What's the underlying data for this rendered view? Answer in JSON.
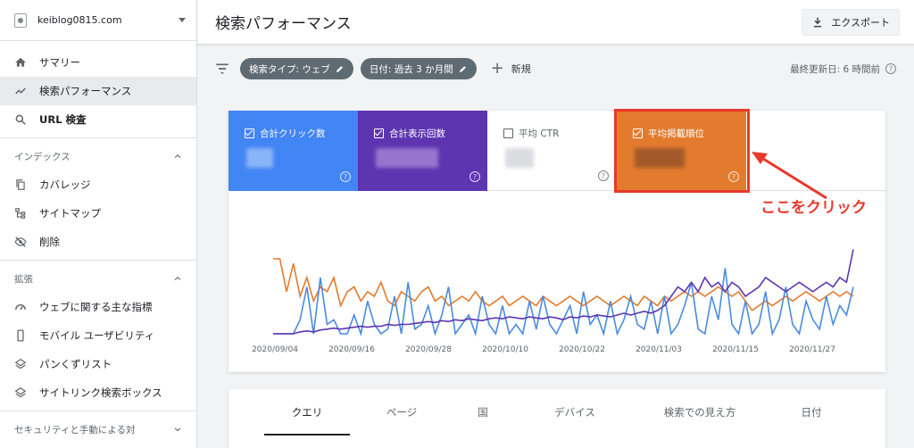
{
  "property": {
    "name": "keiblog0815.com"
  },
  "sidebar": {
    "items": [
      {
        "label": "サマリー",
        "icon": "home-icon"
      },
      {
        "label": "検索パフォーマンス",
        "icon": "trending-icon"
      },
      {
        "label": "URL 検査",
        "icon": "search-icon"
      }
    ],
    "index_section": {
      "title": "インデックス",
      "items": [
        {
          "label": "カバレッジ",
          "icon": "copy-icon"
        },
        {
          "label": "サイトマップ",
          "icon": "sitemap-icon"
        },
        {
          "label": "削除",
          "icon": "visibility-off-icon"
        }
      ]
    },
    "enhance_section": {
      "title": "拡張",
      "items": [
        {
          "label": "ウェブに関する主な指標",
          "icon": "gauge-icon"
        },
        {
          "label": "モバイル ユーザビリティ",
          "icon": "phone-icon"
        },
        {
          "label": "パンくずリスト",
          "icon": "layers-icon"
        },
        {
          "label": "サイトリンク検索ボックス",
          "icon": "layers-icon"
        }
      ]
    },
    "security_section": {
      "title": "セキュリティと手動による対"
    }
  },
  "header": {
    "title": "検索パフォーマンス",
    "export_label": "エクスポート"
  },
  "filters": {
    "chips": [
      "検索タイプ: ウェブ",
      "日付: 過去 3 か月間"
    ],
    "new_label": "新規",
    "updated": "最終更新日: 6 時間前"
  },
  "metrics": [
    {
      "label": "合計クリック数",
      "checked": true,
      "color": "#4285f4"
    },
    {
      "label": "合計表示回数",
      "checked": true,
      "color": "#5e35b1"
    },
    {
      "label": "平均 CTR",
      "checked": false,
      "color": "#ffffff"
    },
    {
      "label": "平均掲載順位",
      "checked": true,
      "color": "#e37b2e"
    }
  ],
  "annotation": {
    "text": "ここをクリック",
    "color": "#e8382b"
  },
  "chart_data": {
    "type": "line",
    "x_ticks": [
      "2020/09/04",
      "2020/09/16",
      "2020/09/28",
      "2020/10/10",
      "2020/10/22",
      "2020/11/03",
      "2020/11/15",
      "2020/11/27"
    ],
    "series": [
      {
        "color": "#e37b2e",
        "values": [
          0.8,
          0.8,
          0.45,
          0.75,
          0.4,
          0.6,
          0.35,
          0.5,
          0.45,
          0.6,
          0.3,
          0.45,
          0.5,
          0.35,
          0.45,
          0.4,
          0.55,
          0.35,
          0.3,
          0.45,
          0.4,
          0.35,
          0.45,
          0.5,
          0.35,
          0.4,
          0.3,
          0.35,
          0.4,
          0.35,
          0.45,
          0.35,
          0.3,
          0.35,
          0.4,
          0.3,
          0.35,
          0.4,
          0.35,
          0.3,
          0.4,
          0.35,
          0.3,
          0.35,
          0.4,
          0.35,
          0.3,
          0.35,
          0.4,
          0.35,
          0.3,
          0.35,
          0.4,
          0.35,
          0.3,
          0.4,
          0.35,
          0.3,
          0.4,
          0.35,
          0.4,
          0.45,
          0.4,
          0.45,
          0.4,
          0.45,
          0.5,
          0.45,
          0.4,
          0.45,
          0.35,
          0.25,
          0.3,
          0.35,
          0.3,
          0.35,
          0.4,
          0.35,
          0.4,
          0.45,
          0.4,
          0.35,
          0.4,
          0.45,
          0.4,
          0.45,
          0.4
        ]
      },
      {
        "color": "#4a8be0",
        "values": [
          0,
          0,
          0,
          0,
          0.15,
          0.5,
          0,
          0.6,
          0.1,
          0.15,
          0,
          0,
          0.2,
          0,
          0.35,
          0.1,
          0,
          0.05,
          0.4,
          0,
          0.55,
          0.05,
          0.1,
          0.3,
          0,
          0.2,
          0.5,
          0,
          0.1,
          0.2,
          0,
          0.4,
          0.1,
          0,
          0.3,
          0,
          0.1,
          0,
          0.35,
          0.05,
          0.4,
          0.1,
          0,
          0.15,
          0.3,
          0,
          0.45,
          0.1,
          0.2,
          0,
          0.35,
          0,
          0.15,
          0.4,
          0.1,
          0.05,
          0.35,
          0,
          0.4,
          0,
          0.1,
          0.3,
          0.55,
          0.05,
          0,
          0.4,
          0.15,
          0.7,
          0.1,
          0,
          0.35,
          0,
          0.1,
          0.45,
          0,
          0.15,
          0.5,
          0.1,
          0,
          0.35,
          0.15,
          0.05,
          0.4,
          0.1,
          0.3,
          0.2,
          0.5
        ]
      },
      {
        "color": "#5e35b1",
        "values": [
          0,
          0,
          0,
          0,
          0.02,
          0.03,
          0.02,
          0.04,
          0.05,
          0.06,
          0.05,
          0.06,
          0.07,
          0.08,
          0.07,
          0.08,
          0.08,
          0.1,
          0.09,
          0.1,
          0.1,
          0.11,
          0.12,
          0.13,
          0.12,
          0.14,
          0.13,
          0.15,
          0.14,
          0.16,
          0.15,
          0.14,
          0.16,
          0.17,
          0.16,
          0.18,
          0.17,
          0.16,
          0.18,
          0.17,
          0.16,
          0.18,
          0.17,
          0.15,
          0.18,
          0.17,
          0.19,
          0.18,
          0.2,
          0.19,
          0.18,
          0.2,
          0.22,
          0.2,
          0.22,
          0.24,
          0.22,
          0.25,
          0.3,
          0.4,
          0.5,
          0.45,
          0.55,
          0.45,
          0.6,
          0.5,
          0.55,
          0.45,
          0.55,
          0.5,
          0.4,
          0.45,
          0.5,
          0.6,
          0.55,
          0.5,
          0.45,
          0.5,
          0.55,
          0.5,
          0.45,
          0.5,
          0.55,
          0.5,
          0.6,
          0.55,
          0.9
        ]
      }
    ]
  },
  "tabs": [
    "クエリ",
    "ページ",
    "国",
    "デバイス",
    "検索での見え方",
    "日付"
  ]
}
